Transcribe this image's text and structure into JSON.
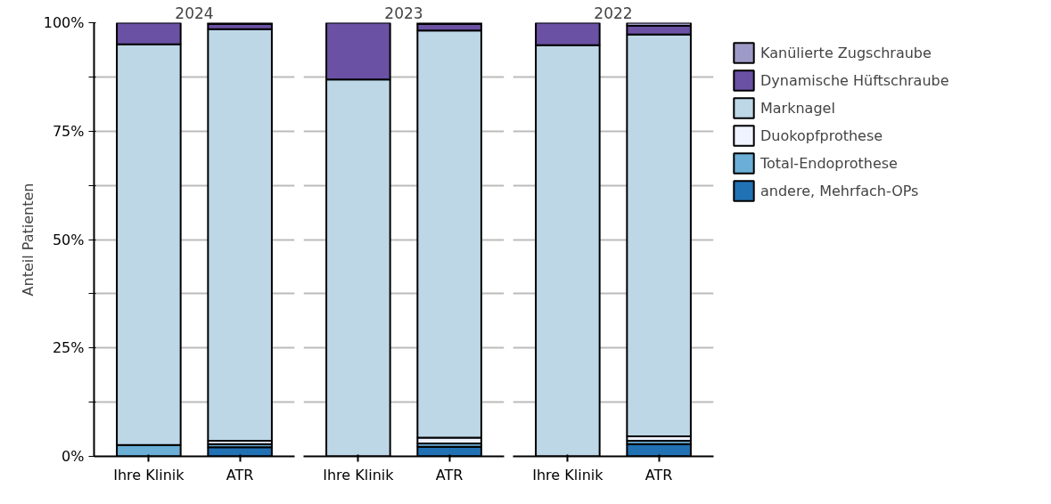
{
  "chart_data": [
    {
      "type": "bar",
      "title": "2024",
      "ylabel": "Anteil Patienten",
      "categories": [
        "Ihre Klinik",
        "ATR"
      ],
      "stacked": true,
      "ylim": [
        0,
        100
      ],
      "yticks": [
        {
          "value": 0,
          "label": "0%"
        },
        {
          "value": 12.5,
          "label": null
        },
        {
          "value": 25,
          "label": "25%"
        },
        {
          "value": 37.5,
          "label": null
        },
        {
          "value": 50,
          "label": "50%"
        },
        {
          "value": 62.5,
          "label": null
        },
        {
          "value": 75,
          "label": "75%"
        },
        {
          "value": 87.5,
          "label": null
        },
        {
          "value": 100,
          "label": "100%"
        }
      ],
      "grid": "y",
      "legend": false,
      "series": [
        {
          "color": "#2171b5",
          "values": [
            0,
            2.1
          ]
        },
        {
          "color": "#6baed6",
          "values": [
            2.6,
            0.7
          ]
        },
        {
          "color": "#eff3ff",
          "values": [
            0,
            0.8
          ]
        },
        {
          "color": "#bdd7e7",
          "values": [
            92.4,
            94.9
          ]
        },
        {
          "color": "#6a51a3",
          "values": [
            5.0,
            1.2
          ]
        },
        {
          "color": "#9e9ac8",
          "values": [
            0,
            0.3
          ]
        }
      ]
    },
    {
      "type": "bar",
      "title": "2023",
      "categories": [
        "Ihre Klinik",
        "ATR"
      ],
      "stacked": true,
      "ylim": [
        0,
        100
      ],
      "yticks": [
        {
          "value": 0,
          "label": null
        },
        {
          "value": 12.5,
          "label": null
        },
        {
          "value": 25,
          "label": null
        },
        {
          "value": 37.5,
          "label": null
        },
        {
          "value": 50,
          "label": null
        },
        {
          "value": 62.5,
          "label": null
        },
        {
          "value": 75,
          "label": null
        },
        {
          "value": 87.5,
          "label": null
        },
        {
          "value": 100,
          "label": null
        }
      ],
      "grid": "y",
      "legend": false,
      "tick_labels": "x",
      "series": [
        {
          "color": "#2171b5",
          "values": [
            0,
            2.2
          ]
        },
        {
          "color": "#6baed6",
          "values": [
            0,
            0.8
          ]
        },
        {
          "color": "#eff3ff",
          "values": [
            0,
            1.3
          ]
        },
        {
          "color": "#bdd7e7",
          "values": [
            86.9,
            93.9
          ]
        },
        {
          "color": "#6a51a3",
          "values": [
            13.1,
            1.5
          ]
        },
        {
          "color": "#9e9ac8",
          "values": [
            0,
            0.3
          ]
        }
      ]
    },
    {
      "type": "bar",
      "title": "2022",
      "categories": [
        "Ihre Klinik",
        "ATR"
      ],
      "stacked": true,
      "ylim": [
        0,
        100
      ],
      "yticks": [
        {
          "value": 0,
          "label": null
        },
        {
          "value": 12.5,
          "label": null
        },
        {
          "value": 25,
          "label": null
        },
        {
          "value": 37.5,
          "label": null
        },
        {
          "value": 50,
          "label": null
        },
        {
          "value": 62.5,
          "label": null
        },
        {
          "value": 75,
          "label": null
        },
        {
          "value": 87.5,
          "label": null
        },
        {
          "value": 100,
          "label": null
        }
      ],
      "grid": "y",
      "legend": "right",
      "tick_labels": "x",
      "series": [
        {
          "name": "andere, Mehrfach-OPs",
          "color": "#2171b5",
          "values": [
            0,
            2.8
          ]
        },
        {
          "name": "Total-Endoprothese",
          "color": "#6baed6",
          "values": [
            0,
            0.8
          ]
        },
        {
          "name": "Duokopfprothese",
          "color": "#eff3ff",
          "values": [
            0,
            1.0
          ]
        },
        {
          "name": "Marknagel",
          "color": "#bdd7e7",
          "values": [
            94.8,
            92.7
          ]
        },
        {
          "name": "Dynamische Hüftschraube",
          "color": "#6a51a3",
          "values": [
            5.2,
            2.0
          ]
        },
        {
          "name": "Kanülierte Zugschraube",
          "color": "#9e9ac8",
          "values": [
            0,
            0.7
          ]
        }
      ]
    }
  ]
}
